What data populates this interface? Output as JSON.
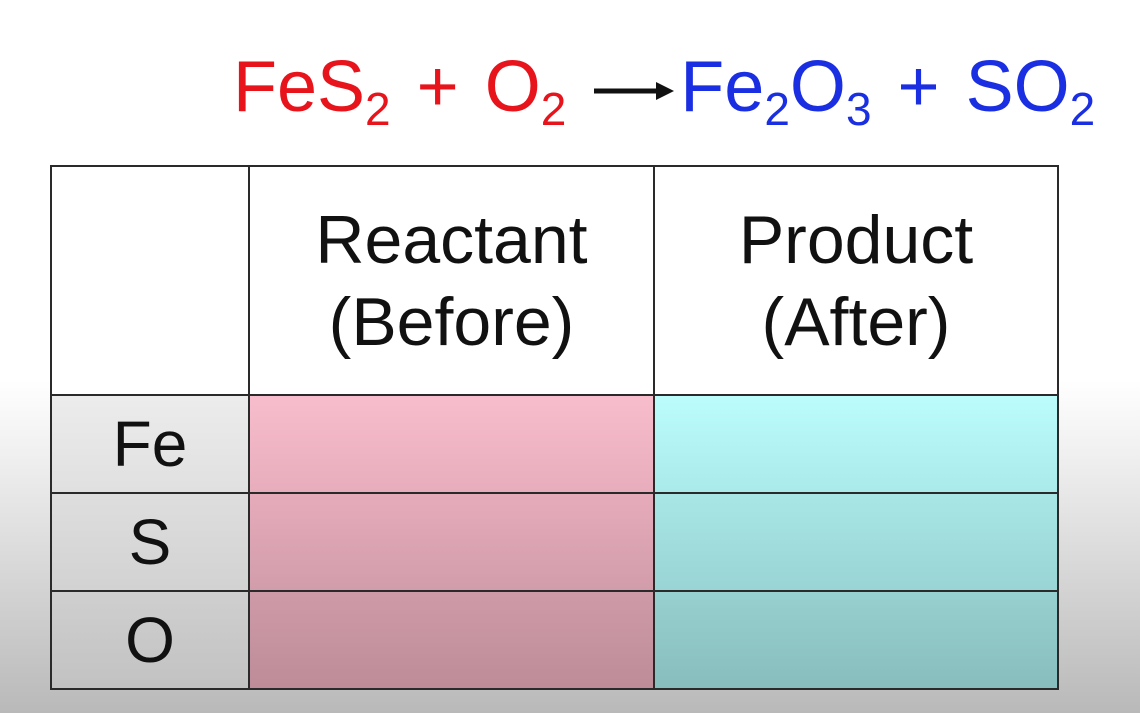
{
  "equation": {
    "reactants": [
      [
        "FeS",
        "2"
      ],
      [
        "O",
        "2"
      ]
    ],
    "products": [
      [
        "Fe",
        "2",
        "O",
        "3"
      ],
      [
        "SO",
        "2"
      ]
    ],
    "plus": "+"
  },
  "table": {
    "header": [
      [
        "Reactant",
        "(Before)"
      ],
      [
        "Product",
        "(After)"
      ]
    ],
    "rows": [
      "Fe",
      "S",
      "O"
    ]
  }
}
